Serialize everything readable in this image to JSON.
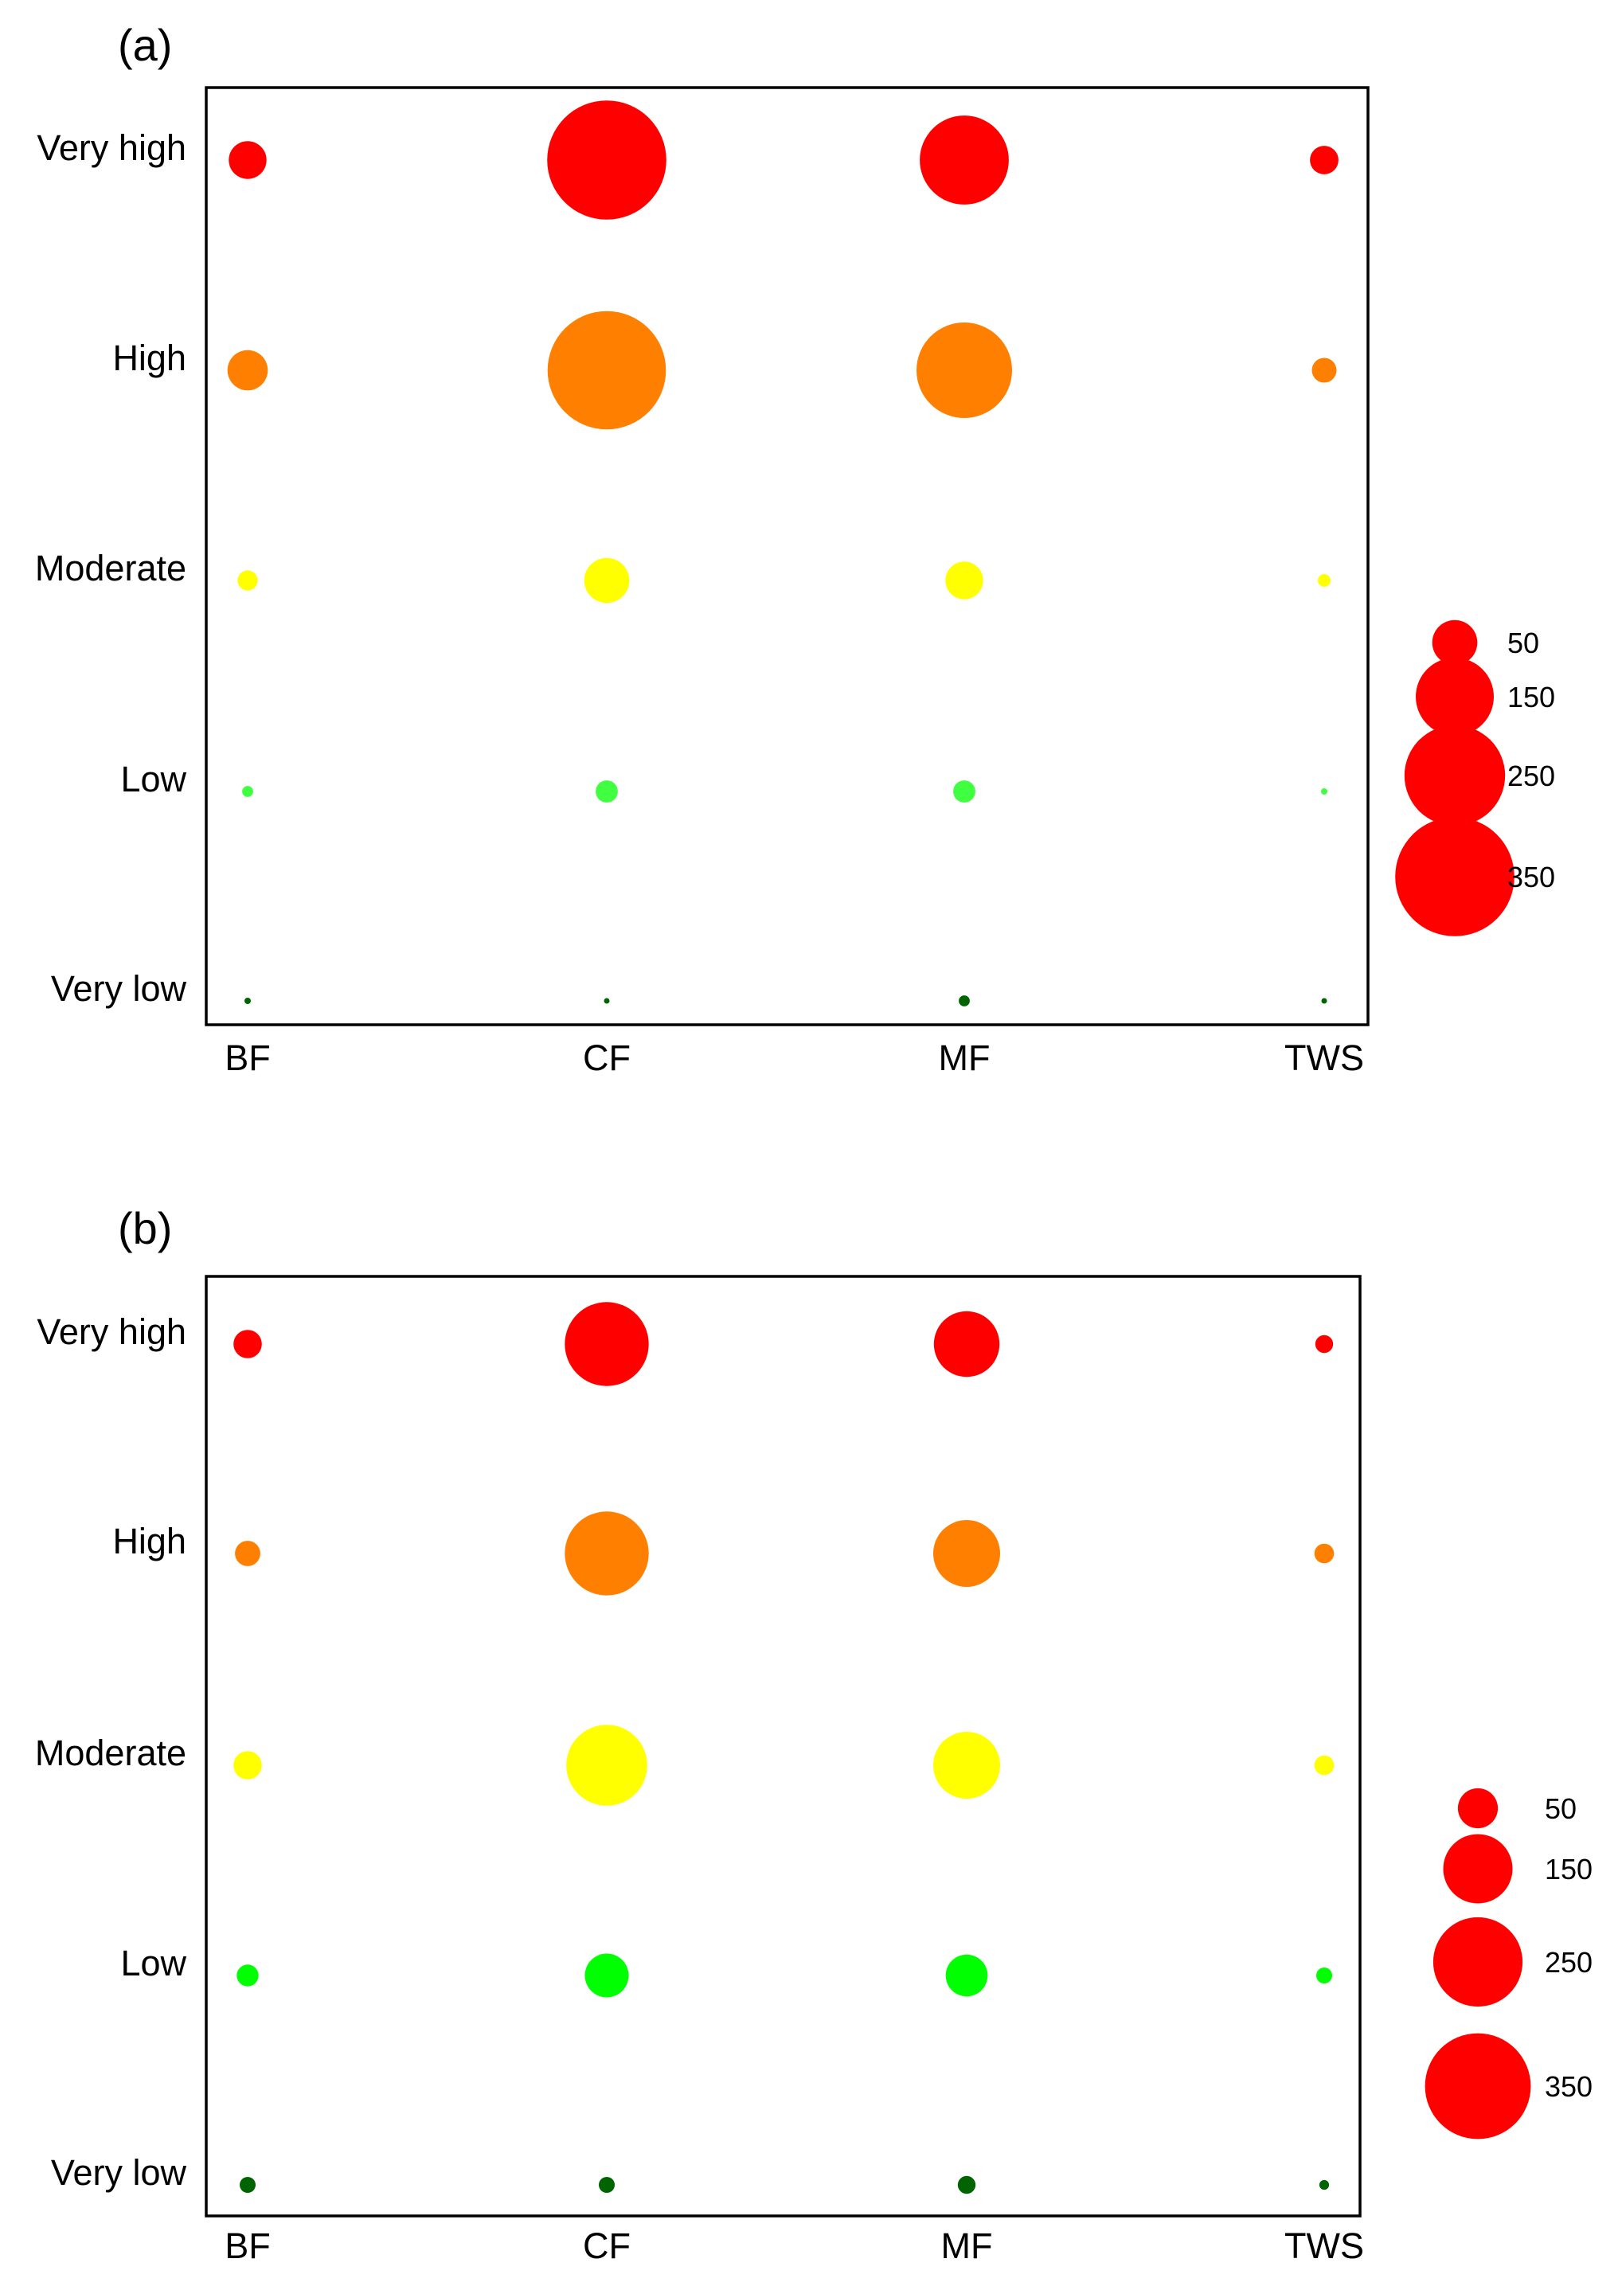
{
  "chart_data": [
    {
      "type": "scatter",
      "subtype": "bubble",
      "panel_label": "(a)",
      "title": "",
      "xlabel": "",
      "ylabel": "",
      "categories": [
        "BF",
        "CF",
        "MF",
        "TWS"
      ],
      "levels": [
        "Very high",
        "High",
        "Moderate",
        "Low",
        "Very low"
      ],
      "level_colors": {
        "Very high": "#ff0000",
        "High": "#ff8000",
        "Moderate": "#ffff00",
        "Low": "#40ff40",
        "Very low": "#006400"
      },
      "series": [
        {
          "name": "Very high",
          "values": [
            35,
            350,
            195,
            20
          ]
        },
        {
          "name": "High",
          "values": [
            40,
            345,
            225,
            15
          ]
        },
        {
          "name": "Moderate",
          "values": [
            10,
            50,
            35,
            4
          ]
        },
        {
          "name": "Low",
          "values": [
            3,
            12,
            12,
            1
          ]
        },
        {
          "name": "Very low",
          "values": [
            1,
            0.5,
            3,
            0.3
          ]
        }
      ],
      "size_legend": [
        50,
        150,
        250,
        350
      ],
      "grid": false
    },
    {
      "type": "scatter",
      "subtype": "bubble",
      "panel_label": "(b)",
      "title": "",
      "xlabel": "",
      "ylabel": "",
      "categories": [
        "BF",
        "CF",
        "MF",
        "TWS"
      ],
      "levels": [
        "Very high",
        "High",
        "Moderate",
        "Low",
        "Very low"
      ],
      "level_colors": {
        "Very high": "#ff0000",
        "High": "#ff8000",
        "Moderate": "#ffff00",
        "Low": "#00ff00",
        "Very low": "#006400"
      },
      "series": [
        {
          "name": "Very high",
          "values": [
            25,
            220,
            135,
            10
          ]
        },
        {
          "name": "High",
          "values": [
            20,
            220,
            140,
            12
          ]
        },
        {
          "name": "Moderate",
          "values": [
            25,
            205,
            140,
            12
          ]
        },
        {
          "name": "Low",
          "values": [
            15,
            60,
            55,
            8
          ]
        },
        {
          "name": "Very low",
          "values": [
            8,
            8,
            10,
            3
          ]
        }
      ],
      "size_legend": [
        50,
        150,
        250,
        350
      ],
      "grid": false
    }
  ]
}
